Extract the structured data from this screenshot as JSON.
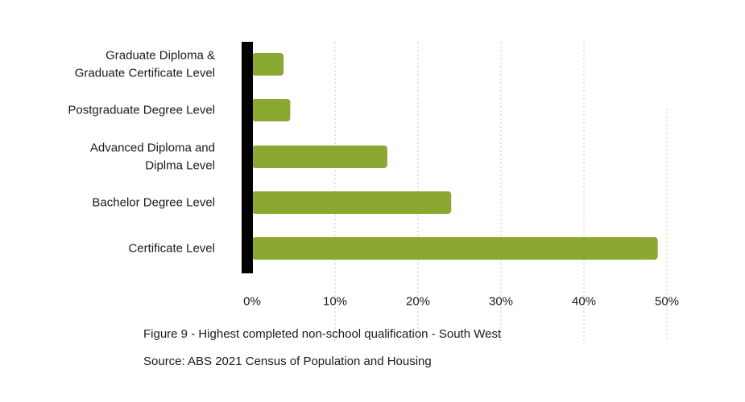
{
  "chart_data": {
    "type": "bar",
    "orientation": "horizontal",
    "categories": [
      "Graduate Diploma &\nGraduate Certificate Level",
      "Postgraduate Degree Level",
      "Advanced Diploma and\nDiplma Level",
      "Bachelor Degree Level",
      "Certificate Level"
    ],
    "values": [
      3.8,
      4.6,
      16.3,
      24.0,
      48.9
    ],
    "xlim": [
      0,
      50
    ],
    "x_ticks": [
      "0%",
      "10%",
      "20%",
      "30%",
      "40%",
      "50%"
    ],
    "x_tick_values": [
      0,
      10,
      20,
      30,
      40,
      50
    ],
    "grid": "vertical dotted",
    "bar_color": "#8aa832",
    "axis_color": "#000000",
    "grid_color": "#c8c8c8"
  },
  "captions": {
    "figure": "Figure 9 - Highest completed non-school qualification - South West",
    "source": "Source: ABS 2021 Census of Population and Housing"
  }
}
